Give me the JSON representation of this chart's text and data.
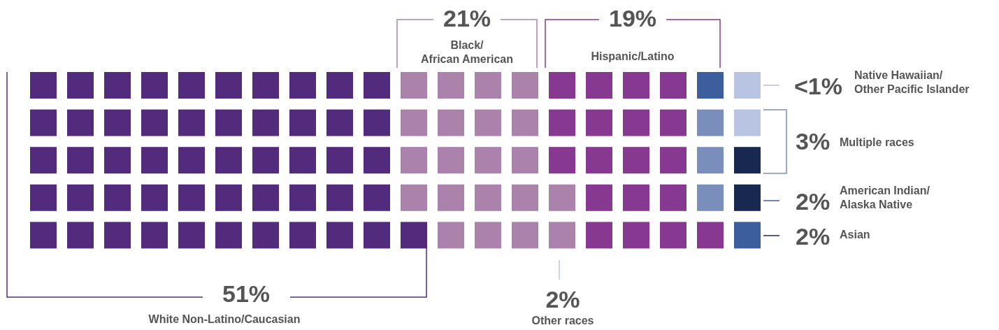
{
  "chart_data": {
    "type": "other",
    "categories": [
      "White Non-Latino/Caucasian",
      "Black/\nAfrican American",
      "Hispanic/Latino",
      "Native Hawaiian/\nOther Pacific Islander",
      "Multiple races",
      "American Indian/\nAlaska Native",
      "Asian",
      "Other races"
    ],
    "values": [
      51,
      21,
      19,
      null,
      3,
      2,
      2,
      2
    ],
    "value_labels": [
      "51%",
      "21%",
      "19%",
      "<1%",
      "3%",
      "2%",
      "2%",
      "2%"
    ],
    "colors": [
      "#522b7d",
      "#ab82ac",
      "#873991",
      "#c7b9d6",
      "#7a8ebb",
      "#3c5e9d",
      "#18284f",
      "#b9c4e2"
    ]
  }
}
